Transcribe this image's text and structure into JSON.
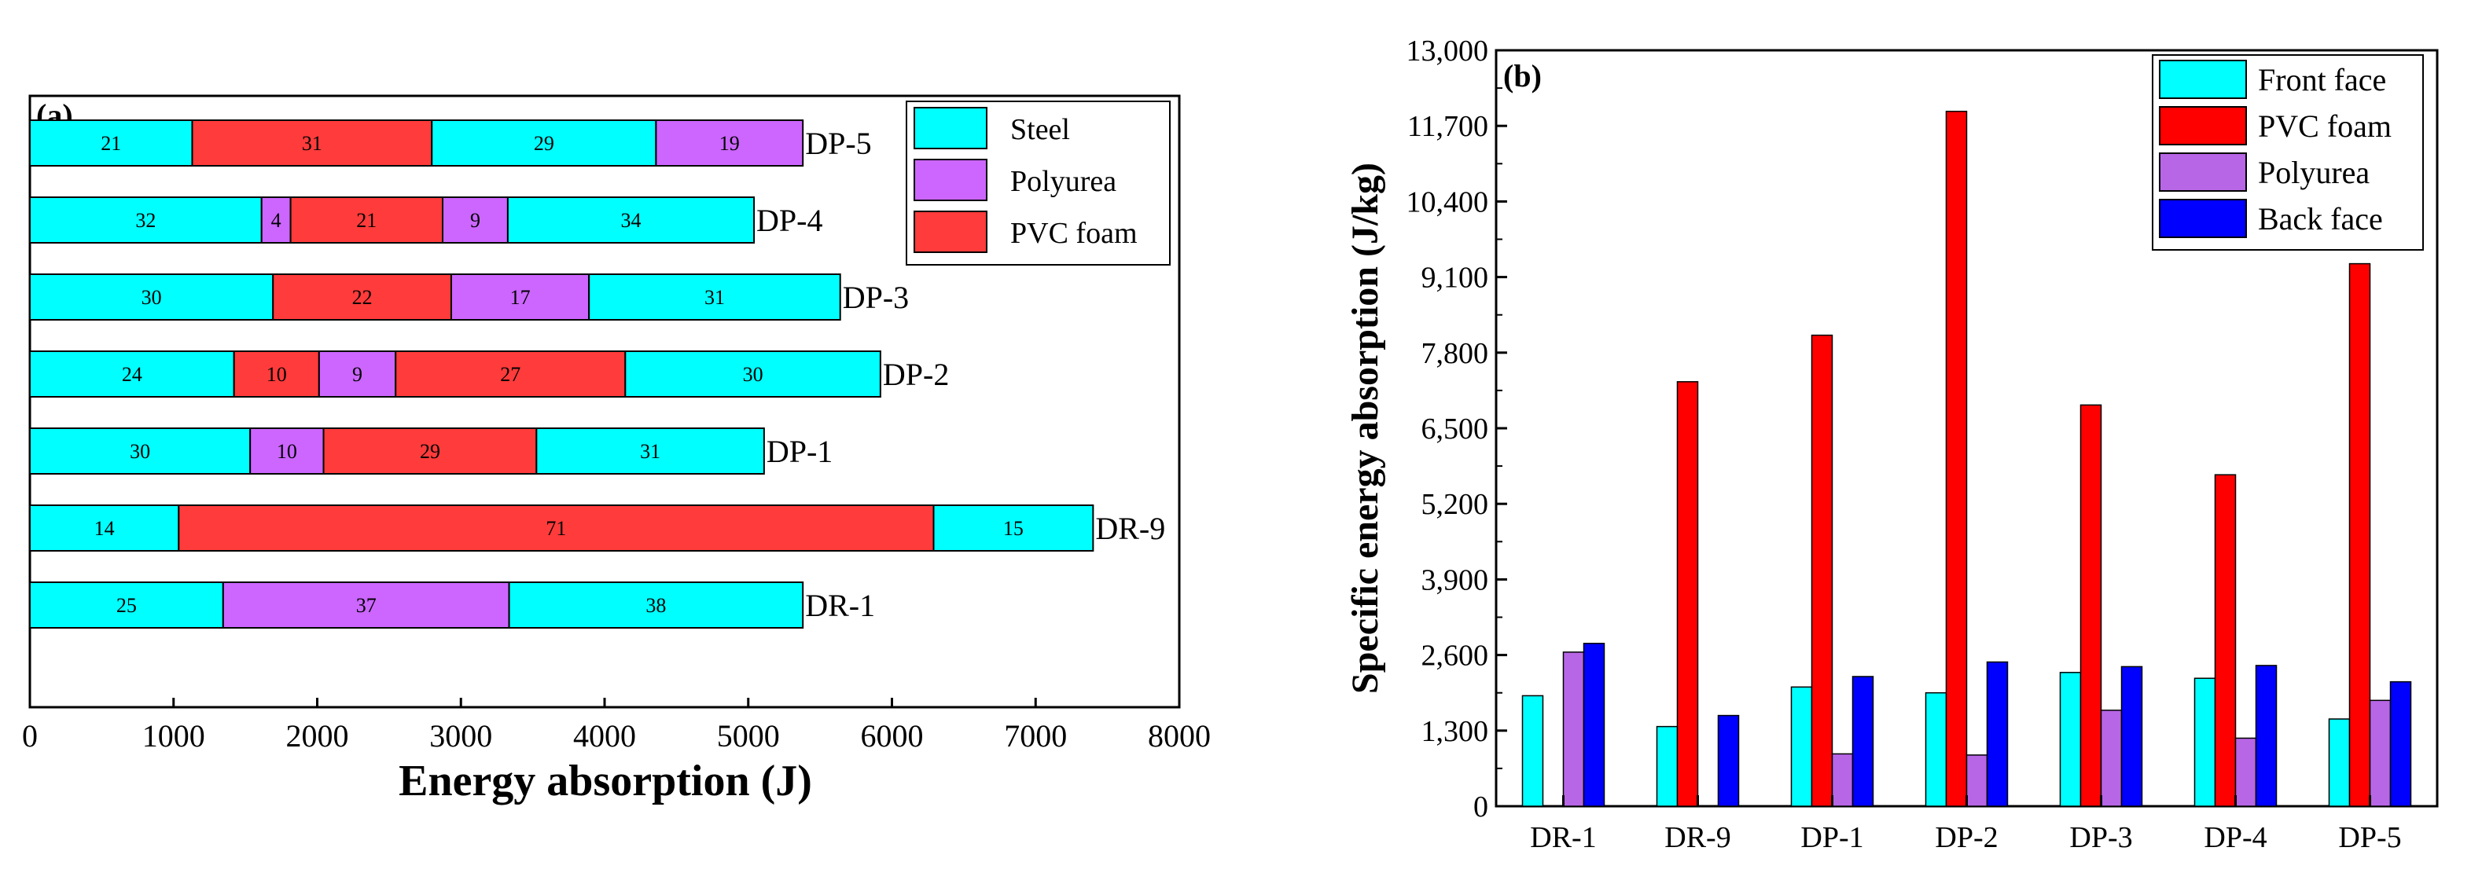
{
  "chart_data": [
    {
      "type": "bar",
      "orientation": "horizontal",
      "stacked": true,
      "panel_label": "(a)",
      "xlabel": "Energy absorption (J)",
      "ylabel": "",
      "xlim": [
        0,
        8000
      ],
      "xticks": [
        0,
        1000,
        2000,
        3000,
        4000,
        5000,
        6000,
        7000,
        8000
      ],
      "legend": {
        "position": "top-right",
        "entries": [
          {
            "name": "Steel",
            "color": "#00FFFF"
          },
          {
            "name": "Polyurea",
            "color": "#CC66FF"
          },
          {
            "name": "PVC  foam",
            "color": "#FF3B3B"
          }
        ]
      },
      "rows": [
        {
          "label": "DP-5",
          "total": 5380,
          "segments": [
            {
              "material": "Steel",
              "pct": 21
            },
            {
              "material": "PVC  foam",
              "pct": 31
            },
            {
              "material": "Steel",
              "pct": 29
            },
            {
              "material": "Polyurea",
              "pct": 19
            }
          ]
        },
        {
          "label": "DP-4",
          "total": 5040,
          "segments": [
            {
              "material": "Steel",
              "pct": 32
            },
            {
              "material": "Polyurea",
              "pct": 4
            },
            {
              "material": "PVC  foam",
              "pct": 21
            },
            {
              "material": "Polyurea",
              "pct": 9
            },
            {
              "material": "Steel",
              "pct": 34
            }
          ]
        },
        {
          "label": "DP-3",
          "total": 5640,
          "segments": [
            {
              "material": "Steel",
              "pct": 30
            },
            {
              "material": "PVC  foam",
              "pct": 22
            },
            {
              "material": "Polyurea",
              "pct": 17
            },
            {
              "material": "Steel",
              "pct": 31
            }
          ]
        },
        {
          "label": "DP-2",
          "total": 5920,
          "segments": [
            {
              "material": "Steel",
              "pct": 24
            },
            {
              "material": "PVC  foam",
              "pct": 10
            },
            {
              "material": "Polyurea",
              "pct": 9
            },
            {
              "material": "PVC  foam",
              "pct": 27
            },
            {
              "material": "Steel",
              "pct": 30
            }
          ]
        },
        {
          "label": "DP-1",
          "total": 5110,
          "segments": [
            {
              "material": "Steel",
              "pct": 30
            },
            {
              "material": "Polyurea",
              "pct": 10
            },
            {
              "material": "PVC  foam",
              "pct": 29
            },
            {
              "material": "Steel",
              "pct": 31
            }
          ]
        },
        {
          "label": "DR-9",
          "total": 7400,
          "segments": [
            {
              "material": "Steel",
              "pct": 14
            },
            {
              "material": "PVC  foam",
              "pct": 71
            },
            {
              "material": "Steel",
              "pct": 15
            }
          ]
        },
        {
          "label": "DR-1",
          "total": 5380,
          "segments": [
            {
              "material": "Steel",
              "pct": 25
            },
            {
              "material": "Polyurea",
              "pct": 37
            },
            {
              "material": "Steel",
              "pct": 38
            }
          ]
        }
      ]
    },
    {
      "type": "bar",
      "orientation": "vertical",
      "panel_label": "(b)",
      "xlabel": "",
      "ylabel": "Specific energy absorption (J/kg)",
      "ylim": [
        0,
        13000
      ],
      "yticks": [
        "0",
        "1,300",
        "2,600",
        "3,900",
        "5,200",
        "6,500",
        "7,800",
        "9,100",
        "10,400",
        "11,700",
        "13,000"
      ],
      "categories": [
        "DR-1",
        "DR-9",
        "DP-1",
        "DP-2",
        "DP-3",
        "DP-4",
        "DP-5"
      ],
      "legend": {
        "position": "top-right"
      },
      "series": [
        {
          "name": "Front face",
          "color": "#00FFFF",
          "values": [
            1900,
            1370,
            2050,
            1950,
            2300,
            2200,
            1500
          ]
        },
        {
          "name": "PVC foam",
          "color": "#FF0000",
          "values": [
            null,
            7300,
            8100,
            11950,
            6900,
            5700,
            9330
          ]
        },
        {
          "name": "Polyurea",
          "color": "#B766E6",
          "values": [
            2650,
            null,
            900,
            880,
            1650,
            1170,
            1820
          ]
        },
        {
          "name": "Back face",
          "color": "#0000FF",
          "values": [
            2800,
            1560,
            2230,
            2480,
            2400,
            2420,
            2140
          ]
        }
      ]
    }
  ]
}
